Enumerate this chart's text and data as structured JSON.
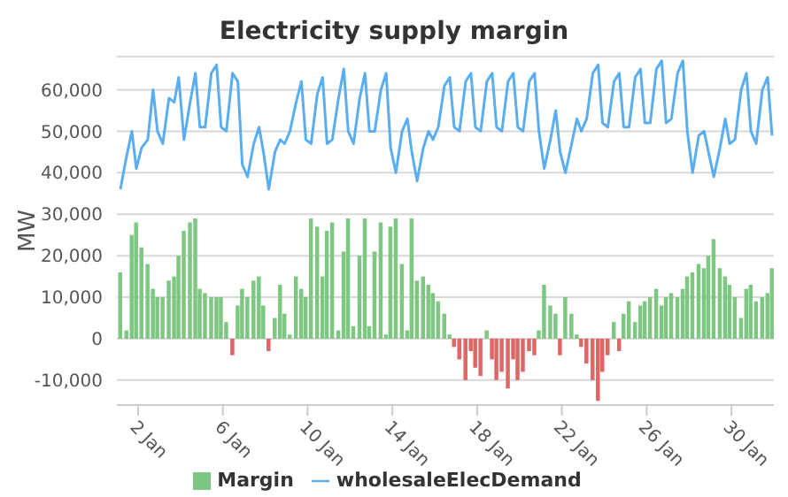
{
  "chart_data": {
    "type": "bar",
    "title": "Electricity supply margin",
    "ylabel": "MW",
    "x": [
      "--01-01T04:00",
      "--01-01T11:00",
      "--01-01T17:00",
      "--01-01T22:00",
      "--01-02T04:00",
      "--01-02T11:00",
      "--01-02T17:00",
      "--01-02T22:00",
      "--01-03T04:00",
      "--01-03T11:00",
      "--01-03T17:00",
      "--01-03T22:00",
      "--01-04T04:00",
      "--01-04T11:00",
      "--01-04T17:00",
      "--01-04T22:00",
      "--01-05T04:00",
      "--01-05T11:00",
      "--01-05T17:00",
      "--01-05T22:00",
      "--01-06T04:00",
      "--01-06T11:00",
      "--01-06T17:00",
      "--01-06T22:00",
      "--01-07T04:00",
      "--01-07T11:00",
      "--01-07T17:00",
      "--01-07T22:00",
      "--01-08T04:00",
      "--01-08T11:00",
      "--01-08T17:00",
      "--01-08T22:00",
      "--01-09T04:00",
      "--01-09T11:00",
      "--01-09T17:00",
      "--01-09T22:00",
      "--01-10T04:00",
      "--01-10T11:00",
      "--01-10T17:00",
      "--01-10T22:00",
      "--01-11T04:00",
      "--01-11T11:00",
      "--01-11T17:00",
      "--01-11T22:00",
      "--01-12T04:00",
      "--01-12T11:00",
      "--01-12T17:00",
      "--01-12T22:00",
      "--01-13T04:00",
      "--01-13T11:00",
      "--01-13T17:00",
      "--01-13T22:00",
      "--01-14T04:00",
      "--01-14T11:00",
      "--01-14T17:00",
      "--01-14T22:00",
      "--01-15T04:00",
      "--01-15T11:00",
      "--01-15T17:00",
      "--01-15T22:00",
      "--01-16T04:00",
      "--01-16T11:00",
      "--01-16T17:00",
      "--01-16T22:00",
      "--01-17T04:00",
      "--01-17T11:00",
      "--01-17T17:00",
      "--01-17T22:00",
      "--01-18T04:00",
      "--01-18T11:00",
      "--01-18T17:00",
      "--01-18T22:00",
      "--01-19T04:00",
      "--01-19T11:00",
      "--01-19T17:00",
      "--01-19T22:00",
      "--01-20T04:00",
      "--01-20T11:00",
      "--01-20T17:00",
      "--01-20T22:00",
      "--01-21T04:00",
      "--01-21T11:00",
      "--01-21T17:00",
      "--01-21T22:00",
      "--01-22T04:00",
      "--01-22T11:00",
      "--01-22T17:00",
      "--01-22T22:00",
      "--01-23T04:00",
      "--01-23T11:00",
      "--01-23T17:00",
      "--01-23T22:00",
      "--01-24T04:00",
      "--01-24T11:00",
      "--01-24T17:00",
      "--01-24T22:00",
      "--01-25T04:00",
      "--01-25T11:00",
      "--01-25T17:00",
      "--01-25T22:00",
      "--01-26T04:00",
      "--01-26T11:00",
      "--01-26T17:00",
      "--01-26T22:00",
      "--01-27T04:00",
      "--01-27T11:00",
      "--01-27T17:00",
      "--01-27T22:00",
      "--01-28T04:00",
      "--01-28T11:00",
      "--01-28T17:00",
      "--01-28T22:00",
      "--01-29T04:00",
      "--01-29T11:00",
      "--01-29T17:00",
      "--01-29T22:00",
      "--01-30T04:00",
      "--01-30T11:00",
      "--01-30T17:00",
      "--01-30T22:00",
      "--01-31T04:00",
      "--01-31T11:00",
      "--01-31T17:00",
      "--01-31T22:00"
    ],
    "xlim": [
      "--01-01T00:00",
      "--02-01T00:00"
    ],
    "xticks": [
      {
        "value": "--01-02",
        "label": "2 Jan"
      },
      {
        "value": "--01-06",
        "label": "6 Jan"
      },
      {
        "value": "--01-10",
        "label": "10 Jan"
      },
      {
        "value": "--01-14",
        "label": "14 Jan"
      },
      {
        "value": "--01-18",
        "label": "18 Jan"
      },
      {
        "value": "--01-22",
        "label": "22 Jan"
      },
      {
        "value": "--01-26",
        "label": "26 Jan"
      },
      {
        "value": "--01-30",
        "label": "30 Jan"
      }
    ],
    "ylim": [
      -16000,
      68000
    ],
    "yticks": [
      {
        "value": -10000,
        "label": "-10,000"
      },
      {
        "value": 0,
        "label": "0"
      },
      {
        "value": 10000,
        "label": "10,000"
      },
      {
        "value": 20000,
        "label": "20,000"
      },
      {
        "value": 30000,
        "label": "30,000"
      },
      {
        "value": 40000,
        "label": "40,000"
      },
      {
        "value": 50000,
        "label": "50,000"
      },
      {
        "value": 60000,
        "label": "60,000"
      }
    ],
    "grid": "y",
    "legend": "bottom",
    "series": [
      {
        "name": "Margin",
        "color": "#7dc782",
        "values": [
          16000,
          2000,
          25000,
          28000,
          22000,
          18000,
          12000,
          10000,
          10000,
          14000,
          15000,
          20000,
          26000,
          28000,
          29000,
          12000,
          11000,
          10000,
          10000,
          10000,
          4000,
          -4000,
          8000,
          12000,
          10000,
          14000,
          15000,
          8000,
          -3000,
          5000,
          13000,
          6000,
          1000,
          15000,
          12000,
          10000,
          29000,
          27000,
          15000,
          26000,
          28000,
          2000,
          21000,
          29000,
          3000,
          20000,
          29000,
          3000,
          21000,
          28000,
          1000,
          27000,
          29000,
          18000,
          2000,
          29000,
          14000,
          15000,
          13000,
          11000,
          9000,
          6000,
          1000,
          -2000,
          -5000,
          -10000,
          -3000,
          -7000,
          -9000,
          2000,
          -5000,
          -10000,
          -8000,
          -12000,
          -5000,
          -10000,
          -8000,
          -3000,
          -4000,
          2000,
          13000,
          8000,
          6000,
          -4000,
          10000,
          6000,
          1000,
          -2000,
          -6000,
          -10000,
          -15000,
          -8000,
          -4000,
          4000,
          -3000,
          6000,
          9000,
          4000,
          8000,
          9000,
          10000,
          12000,
          8000,
          10000,
          11000,
          10000,
          12000,
          15000,
          16000,
          18000,
          17000,
          20000,
          24000,
          17000,
          15000,
          13000,
          10000,
          5000,
          12000,
          13000,
          9000,
          10000,
          11000,
          17000
        ],
        "colors": [
          "#7dc782",
          "#7dc782",
          "#7dc782",
          "#7dc782",
          "#7dc782",
          "#7dc782",
          "#7dc782",
          "#7dc782",
          "#7dc782",
          "#7dc782",
          "#7dc782",
          "#7dc782",
          "#7dc782",
          "#7dc782",
          "#7dc782",
          "#7dc782",
          "#7dc782",
          "#7dc782",
          "#7dc782",
          "#7dc782",
          "#7dc782",
          "#e06666",
          "#7dc782",
          "#7dc782",
          "#7dc782",
          "#7dc782",
          "#7dc782",
          "#7dc782",
          "#e06666",
          "#7dc782",
          "#7dc782",
          "#7dc782",
          "#7dc782",
          "#7dc782",
          "#7dc782",
          "#7dc782",
          "#7dc782",
          "#7dc782",
          "#7dc782",
          "#7dc782",
          "#7dc782",
          "#7dc782",
          "#7dc782",
          "#7dc782",
          "#7dc782",
          "#7dc782",
          "#7dc782",
          "#7dc782",
          "#7dc782",
          "#7dc782",
          "#7dc782",
          "#7dc782",
          "#7dc782",
          "#7dc782",
          "#7dc782",
          "#7dc782",
          "#7dc782",
          "#7dc782",
          "#7dc782",
          "#7dc782",
          "#7dc782",
          "#7dc782",
          "#7dc782",
          "#e06666",
          "#e06666",
          "#e06666",
          "#e06666",
          "#e06666",
          "#e06666",
          "#7dc782",
          "#e06666",
          "#e06666",
          "#e06666",
          "#e06666",
          "#e06666",
          "#e06666",
          "#e06666",
          "#e06666",
          "#e06666",
          "#7dc782",
          "#7dc782",
          "#7dc782",
          "#7dc782",
          "#e06666",
          "#7dc782",
          "#7dc782",
          "#7dc782",
          "#e06666",
          "#e06666",
          "#e06666",
          "#e06666",
          "#e06666",
          "#e06666",
          "#7dc782",
          "#e06666",
          "#7dc782",
          "#7dc782",
          "#7dc782",
          "#7dc782",
          "#7dc782",
          "#7dc782",
          "#7dc782",
          "#7dc782",
          "#7dc782",
          "#7dc782",
          "#7dc782",
          "#7dc782",
          "#7dc782",
          "#7dc782",
          "#7dc782",
          "#7dc782",
          "#7dc782",
          "#7dc782",
          "#7dc782",
          "#7dc782",
          "#7dc782",
          "#7dc782",
          "#7dc782",
          "#7dc782",
          "#7dc782",
          "#7dc782",
          "#7dc782",
          "#7dc782",
          "#7dc782"
        ]
      },
      {
        "name": "wholesaleElecDemand",
        "type": "line",
        "color": "#5aaef0",
        "values": [
          36000,
          44000,
          50000,
          41000,
          46000,
          48000,
          60000,
          50000,
          47000,
          58000,
          57000,
          63000,
          48000,
          57000,
          64000,
          51000,
          51000,
          64000,
          66000,
          51000,
          50000,
          64000,
          62000,
          42000,
          39000,
          47000,
          51000,
          45000,
          36000,
          45000,
          48000,
          47000,
          50000,
          57000,
          62000,
          48000,
          47000,
          59000,
          63000,
          47000,
          48000,
          58000,
          65000,
          50000,
          47000,
          58000,
          64000,
          50000,
          50000,
          60000,
          64000,
          46000,
          40000,
          50000,
          53000,
          45000,
          38000,
          46000,
          50000,
          48000,
          51000,
          61000,
          63000,
          51000,
          50000,
          62000,
          64000,
          51000,
          50000,
          62000,
          64000,
          51000,
          50000,
          62000,
          64000,
          51000,
          50000,
          62000,
          64000,
          50000,
          41000,
          48000,
          55000,
          45000,
          40000,
          47000,
          53000,
          50000,
          53000,
          64000,
          66000,
          52000,
          51000,
          62000,
          64000,
          51000,
          51000,
          63000,
          65000,
          52000,
          52000,
          65000,
          67000,
          52000,
          53000,
          64000,
          67000,
          50000,
          40000,
          49000,
          50000,
          45000,
          39000,
          46000,
          53000,
          47000,
          48000,
          60000,
          64000,
          50000,
          47000,
          60000,
          63000,
          49000
        ]
      }
    ]
  }
}
